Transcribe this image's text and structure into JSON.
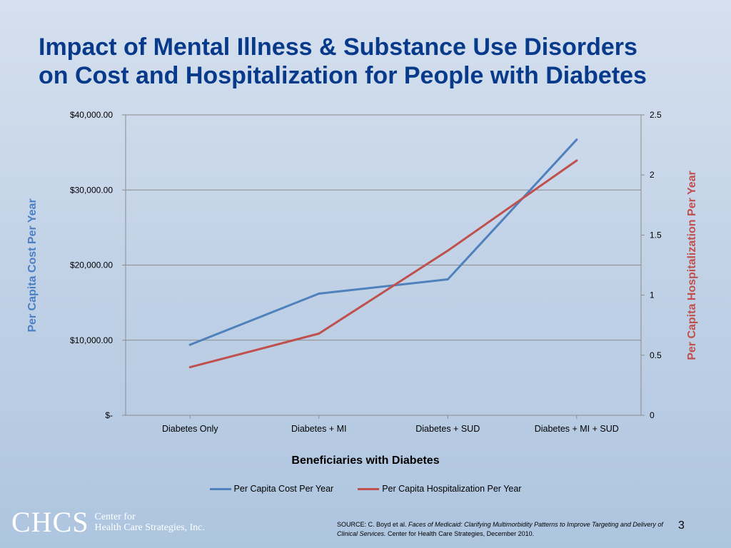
{
  "slide": {
    "title_line1": "Impact of Mental Illness & Substance Use Disorders",
    "title_line2": "on Cost and Hospitalization for People with Diabetes",
    "page_number": "3"
  },
  "logo": {
    "mark": "CHCS",
    "text_line1": "Center for",
    "text_line2": "Health Care Strategies, Inc."
  },
  "source": {
    "prefix": "SOURCE: C. Boyd et al. ",
    "title": "Faces of Medicaid: Clarifying Multimorbidity Patterns to Improve Targeting and Delivery of Clinical Services.",
    "suffix": " Center for Health Care Strategies, December 2010."
  },
  "chart_data": {
    "type": "line",
    "categories": [
      "Diabetes Only",
      "Diabetes + MI",
      "Diabetes + SUD",
      "Diabetes + MI + SUD"
    ],
    "series": [
      {
        "name": "Per Capita Cost Per Year",
        "axis": "left",
        "color": "#4f81bd",
        "values": [
          9400,
          16200,
          18100,
          36700
        ]
      },
      {
        "name": "Per Capita Hospitalization Per Year",
        "axis": "right",
        "color": "#c0504d",
        "values": [
          0.4,
          0.68,
          1.37,
          2.12
        ]
      }
    ],
    "xlabel": "Beneficiaries with Diabetes",
    "ylabel_left": "Per Capita Cost Per Year",
    "ylabel_right": "Per Capita Hospitalization Per Year",
    "ylim_left": [
      0,
      40000
    ],
    "ylim_right": [
      0,
      2.5
    ],
    "yticks_left": [
      "$-",
      "$10,000.00",
      "$20,000.00",
      "$30,000.00",
      "$40,000.00"
    ],
    "yticks_right": [
      "0",
      "0.5",
      "1",
      "1.5",
      "2",
      "2.5"
    ],
    "grid": true,
    "legend": "bottom"
  }
}
